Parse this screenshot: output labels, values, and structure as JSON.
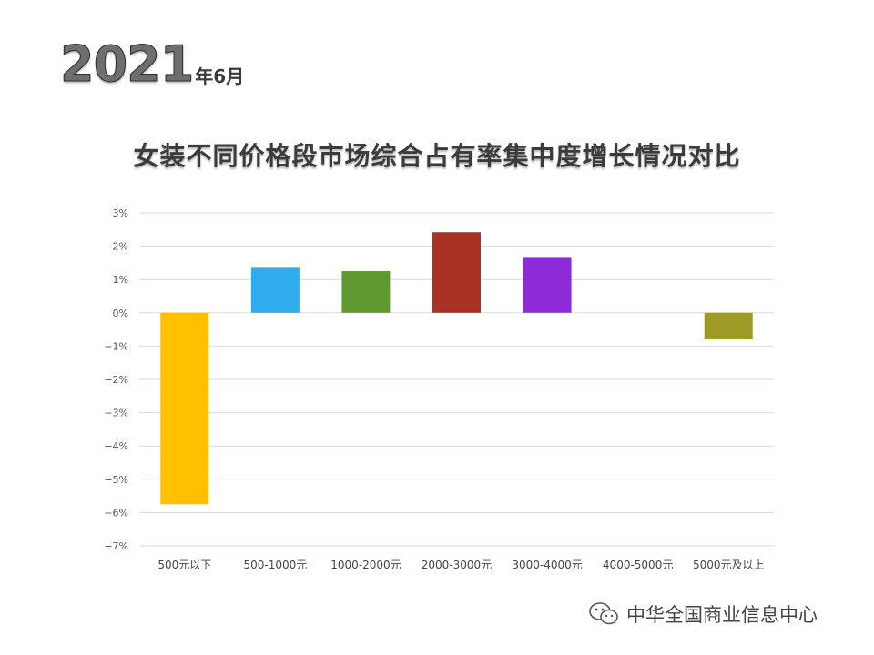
{
  "header": {
    "year": "2021",
    "period": "年6月",
    "title": "女装不同价格段市场综合占有率集中度增长情况对比"
  },
  "watermark": {
    "text": "中华全国商业信息中心",
    "icon": "wechat-icon"
  },
  "chart_data": {
    "type": "bar",
    "categories": [
      "500元以下",
      "500-1000元",
      "1000-2000元",
      "2000-3000元",
      "3000-4000元",
      "4000-5000元",
      "5000元及以上"
    ],
    "values": [
      -5.75,
      1.35,
      1.25,
      2.42,
      1.65,
      0,
      -0.8
    ],
    "colors": [
      "#FFC000",
      "#2FACEB",
      "#5E9A2F",
      "#A93226",
      "#8E2BD8",
      "#CCCCCC",
      "#9C9A25"
    ],
    "ylim": [
      -7,
      3
    ],
    "yticks": [
      "3%",
      "2%",
      "1%",
      "0%",
      "−1%",
      "−2%",
      "−3%",
      "−4%",
      "−5%",
      "−6%",
      "−7%"
    ],
    "ytick_values": [
      3,
      2,
      1,
      0,
      -1,
      -2,
      -3,
      -4,
      -5,
      -6,
      -7
    ],
    "grid": true,
    "xlabel": "",
    "ylabel": ""
  }
}
